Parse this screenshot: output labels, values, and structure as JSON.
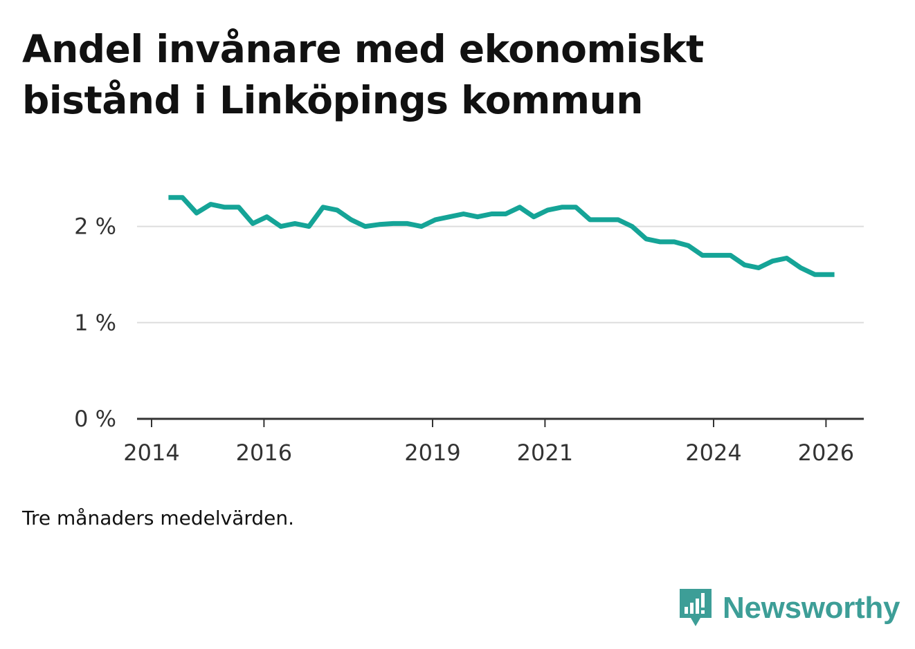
{
  "title": "Andel invånare med ekonomiskt bistånd i Linköpings kommun",
  "note": "Tre månaders medelvärden.",
  "brand": {
    "name": "Newsworthy",
    "color": "#3d9e97",
    "icon": "bar-chart-speech-bubble-icon"
  },
  "colors": {
    "line": "#15a497",
    "grid": "#dddddd",
    "axis": "#333333"
  },
  "chart_data": {
    "type": "line",
    "title": "Andel invånare med ekonomiskt bistånd i Linköpings kommun",
    "xlabel": "",
    "ylabel": "",
    "ylim": [
      0,
      2.5
    ],
    "xlim": [
      2014,
      2026.35
    ],
    "y_ticks": [
      {
        "value": 0,
        "label": "0 %"
      },
      {
        "value": 1,
        "label": "1 %"
      },
      {
        "value": 2,
        "label": "2 %"
      }
    ],
    "x_ticks": [
      {
        "value": 2014,
        "label": "2014"
      },
      {
        "value": 2016,
        "label": "2016"
      },
      {
        "value": 2019,
        "label": "2019"
      },
      {
        "value": 2021,
        "label": "2021"
      },
      {
        "value": 2024,
        "label": "2024"
      },
      {
        "value": 2026,
        "label": "2026"
      }
    ],
    "grid": true,
    "legend": "none",
    "series": [
      {
        "name": "Andel invånare med ekonomiskt bistånd",
        "x": [
          2014.3,
          2014.55,
          2014.8,
          2015.05,
          2015.3,
          2015.55,
          2015.8,
          2016.05,
          2016.3,
          2016.55,
          2016.8,
          2017.05,
          2017.3,
          2017.55,
          2017.8,
          2018.05,
          2018.3,
          2018.55,
          2018.8,
          2019.05,
          2019.3,
          2019.55,
          2019.8,
          2020.05,
          2020.3,
          2020.55,
          2020.8,
          2021.05,
          2021.3,
          2021.55,
          2021.8,
          2022.05,
          2022.3,
          2022.55,
          2022.8,
          2023.05,
          2023.3,
          2023.55,
          2023.8,
          2024.05,
          2024.3,
          2024.55,
          2024.8,
          2025.05,
          2025.3,
          2025.55,
          2025.8,
          2026.15
        ],
        "values": [
          2.3,
          2.3,
          2.14,
          2.23,
          2.2,
          2.2,
          2.03,
          2.1,
          2.0,
          2.03,
          2.0,
          2.2,
          2.17,
          2.07,
          2.0,
          2.02,
          2.03,
          2.03,
          2.0,
          2.07,
          2.1,
          2.13,
          2.1,
          2.13,
          2.13,
          2.2,
          2.1,
          2.17,
          2.2,
          2.2,
          2.07,
          2.07,
          2.07,
          2.0,
          1.87,
          1.84,
          1.84,
          1.8,
          1.7,
          1.7,
          1.7,
          1.6,
          1.57,
          1.64,
          1.67,
          1.57,
          1.5,
          1.5
        ]
      }
    ]
  }
}
